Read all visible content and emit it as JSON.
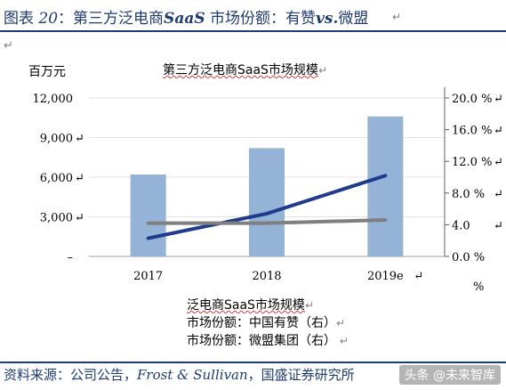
{
  "figure": {
    "label_prefix": "图表",
    "label_number": "20",
    "label_colon": "：",
    "title_part1": "第三方泛电商",
    "title_italic": "SaaS",
    "title_part2": " 市场份额：有赞",
    "title_italic2": "vs.",
    "title_part3": "微盟"
  },
  "unit_label": "百万元",
  "source": {
    "prefix": "资料来源：公司公告，",
    "italic": "Frost & Sullivan",
    "suffix": "，国盛证券研究所"
  },
  "watermark": "头条 @未来智库",
  "colors": {
    "bar": "#95b3d7",
    "line_youzan": "#1f3b8c",
    "line_weimeng": "#7f7f7f",
    "brand": "#1f3b73"
  },
  "chart_data": {
    "type": "bar",
    "title": "第三方泛电商SaaS市场规模",
    "categories": [
      "2017",
      "2018",
      "2019e"
    ],
    "y_left": {
      "ticks": [
        "–",
        "3,000",
        "6,000",
        "9,000",
        "12,000"
      ],
      "ylim": [
        0,
        12000
      ]
    },
    "y_right": {
      "ticks": [
        "0.0 %",
        "4.0",
        "8.0 %",
        "12.0 %",
        "16.0 %",
        "20.0 %"
      ],
      "ylim": [
        0,
        20
      ]
    },
    "series": [
      {
        "name": "泛电商SaaS市场规模",
        "kind": "bar",
        "axis": "left",
        "values": [
          6200,
          8200,
          10600
        ]
      },
      {
        "name": "市场份额：中国有赞（右）",
        "kind": "line",
        "axis": "right",
        "values": [
          2.3,
          5.4,
          10.2
        ]
      },
      {
        "name": "市场份额：微盟集团（右）",
        "kind": "line",
        "axis": "right",
        "values": [
          4.2,
          4.2,
          4.6
        ]
      }
    ],
    "right_axis_extra": "%"
  }
}
